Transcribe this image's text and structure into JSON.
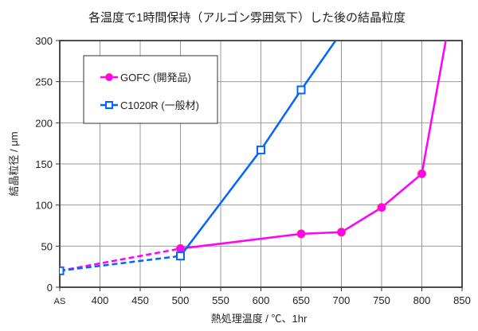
{
  "chart_data": {
    "type": "line",
    "title": "各温度で1時間保持（アルゴン雰囲気下）した後の結晶粒度",
    "xlabel": "熱処理温度 / ℃、1hr",
    "ylabel": "結晶粒径 / μm",
    "xlim": [
      350,
      850
    ],
    "ylim": [
      0,
      300
    ],
    "x_ticks": [
      {
        "value": 350,
        "label": "AS"
      },
      {
        "value": 400,
        "label": "400"
      },
      {
        "value": 450,
        "label": "450"
      },
      {
        "value": 500,
        "label": "500"
      },
      {
        "value": 550,
        "label": "550"
      },
      {
        "value": 600,
        "label": "600"
      },
      {
        "value": 650,
        "label": "650"
      },
      {
        "value": 700,
        "label": "700"
      },
      {
        "value": 750,
        "label": "750"
      },
      {
        "value": 800,
        "label": "800"
      },
      {
        "value": 850,
        "label": "850"
      }
    ],
    "y_ticks": [
      0,
      50,
      100,
      150,
      200,
      250,
      300
    ],
    "grid": true,
    "legend_position": "top-left",
    "series": [
      {
        "name": "GOFC (開発品)",
        "color": "#ff00ff",
        "marker": "filled-circle",
        "dashed_to_x": 500,
        "x": [
          350,
          500,
          650,
          700,
          750,
          800,
          850
        ],
        "y": [
          20,
          47,
          65,
          67,
          97,
          138,
          410
        ]
      },
      {
        "name": "C1020R (一般材)",
        "color": "#0066ff",
        "marker": "open-square",
        "dashed_to_x": 500,
        "x": [
          350,
          500,
          600,
          650,
          700
        ],
        "y": [
          20,
          38,
          167,
          240,
          310
        ]
      }
    ]
  }
}
